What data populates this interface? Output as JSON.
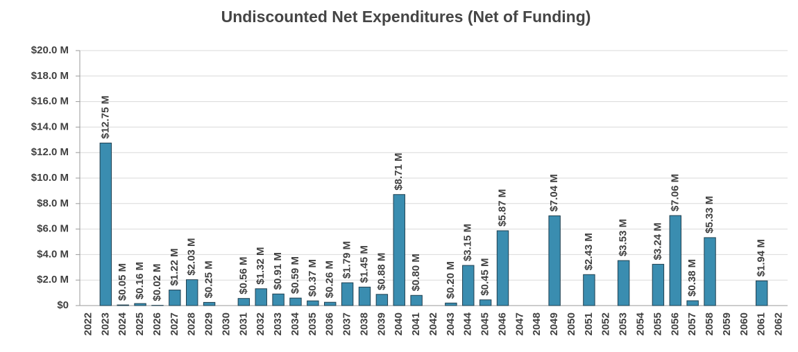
{
  "chart_data": {
    "type": "bar",
    "title": "Undiscounted Net Expenditures (Net of Funding)",
    "categories": [
      "2022",
      "2023",
      "2024",
      "2025",
      "2026",
      "2027",
      "2028",
      "2029",
      "2030",
      "2031",
      "2032",
      "2033",
      "2034",
      "2035",
      "2036",
      "2037",
      "2038",
      "2039",
      "2040",
      "2041",
      "2042",
      "2043",
      "2044",
      "2045",
      "2046",
      "2047",
      "2048",
      "2049",
      "2050",
      "2051",
      "2052",
      "2053",
      "2054",
      "2055",
      "2056",
      "2057",
      "2058",
      "2059",
      "2060",
      "2061",
      "2062"
    ],
    "values": [
      null,
      12.75,
      0.05,
      0.16,
      0.02,
      1.22,
      2.03,
      0.25,
      null,
      0.56,
      1.32,
      0.91,
      0.59,
      0.37,
      0.26,
      1.79,
      1.45,
      0.88,
      8.71,
      0.8,
      null,
      0.2,
      3.15,
      0.45,
      5.87,
      null,
      null,
      7.04,
      null,
      2.43,
      null,
      3.53,
      null,
      3.24,
      7.06,
      0.38,
      5.33,
      null,
      null,
      1.94,
      null
    ],
    "value_labels": [
      null,
      "$12.75 M",
      "$0.05 M",
      "$0.16 M",
      "$0.02 M",
      "$1.22 M",
      "$2.03 M",
      "$0.25 M",
      null,
      "$0.56 M",
      "$1.32 M",
      "$0.91 M",
      "$0.59 M",
      "$0.37 M",
      "$0.26 M",
      "$1.79 M",
      "$1.45 M",
      "$0.88 M",
      "$8.71 M",
      "$0.80 M",
      null,
      "$0.20 M",
      "$3.15 M",
      "$0.45 M",
      "$5.87 M",
      null,
      null,
      "$7.04 M",
      null,
      "$2.43 M",
      null,
      "$3.53 M",
      null,
      "$3.24 M",
      "$7.06 M",
      "$0.38 M",
      "$5.33 M",
      null,
      null,
      "$1.94 M",
      null
    ],
    "color": "#3a8db0",
    "ylim": [
      0,
      20
    ],
    "yticks": [
      {
        "value": 0,
        "label": "$0"
      },
      {
        "value": 2,
        "label": "$2.0 M"
      },
      {
        "value": 4,
        "label": "$4.0 M"
      },
      {
        "value": 6,
        "label": "$6.0 M"
      },
      {
        "value": 8,
        "label": "$8.0 M"
      },
      {
        "value": 10,
        "label": "$10.0 M"
      },
      {
        "value": 12,
        "label": "$12.0 M"
      },
      {
        "value": 14,
        "label": "$14.0 M"
      },
      {
        "value": 16,
        "label": "$16.0 M"
      },
      {
        "value": 18,
        "label": "$18.0 M"
      },
      {
        "value": 20,
        "label": "$20.0 M"
      }
    ],
    "grid": true
  }
}
